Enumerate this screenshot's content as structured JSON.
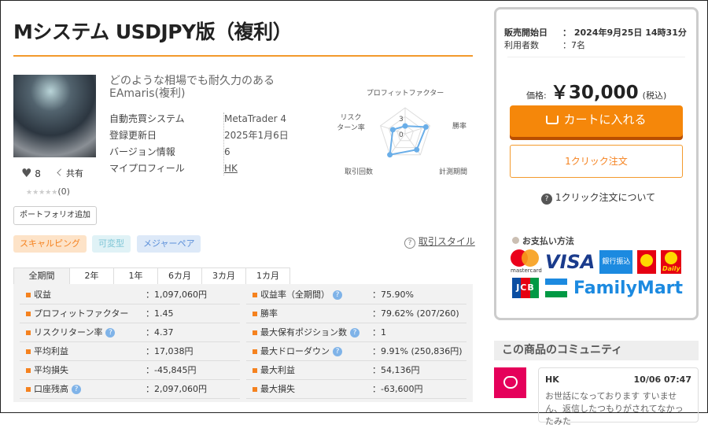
{
  "title": "Mシステム USDJPY版（複利）",
  "product": {
    "subtitle_line1": "どのような相場でも耐久力のある",
    "subtitle_line2": "EAmaris(複利)",
    "info": [
      {
        "k": "自動売買システム",
        "v": "MetaTrader 4"
      },
      {
        "k": "登録更新日",
        "v": "2025年1月6日"
      },
      {
        "k": "バージョン情報",
        "v": "6"
      },
      {
        "k": "マイプロフィール",
        "v": "HK"
      }
    ],
    "likes": "8",
    "share": "共有",
    "stars": "★★★★★",
    "reviews": "(0)",
    "portfolio_button": "ポートフォリオ追加",
    "tags": [
      {
        "label": "スキャルピング",
        "color": "#f5821f"
      },
      {
        "label": "可変型",
        "color": "#7fc6d6"
      },
      {
        "label": "メジャーペア",
        "color": "#5b8fd9"
      }
    ],
    "trade_style": "取引スタイル"
  },
  "radar": {
    "axes": [
      "プロフィットファクター",
      "勝率",
      "計測期間",
      "取引回数",
      "リスク\nターン率"
    ],
    "tick_labels": [
      "0",
      "3"
    ],
    "values": [
      1.5,
      4.2,
      3.8,
      5,
      2.5
    ],
    "max": 5,
    "color": "#6aaee8"
  },
  "tabs": [
    "全期間",
    "2年",
    "1年",
    "6カ月",
    "3カ月",
    "1カ月"
  ],
  "stats_left": [
    {
      "k": "収益",
      "v": "：1,097,060円",
      "help": false
    },
    {
      "k": "プロフィットファクター",
      "v": "：1.45",
      "help": false
    },
    {
      "k": "リスクリターン率",
      "v": "：4.37",
      "help": true
    },
    {
      "k": "平均利益",
      "v": "：17,038円",
      "help": false
    },
    {
      "k": "平均損失",
      "v": "：-45,845円",
      "help": false
    },
    {
      "k": "口座残高",
      "v": "：2,097,060円",
      "help": true
    }
  ],
  "stats_right": [
    {
      "k": "収益率（全期間）",
      "v": "：75.90%",
      "help": true
    },
    {
      "k": "勝率",
      "v": "：79.62% (207/260)",
      "help": false
    },
    {
      "k": "最大保有ポジション数",
      "v": "：1",
      "help": true
    },
    {
      "k": "最大ドローダウン",
      "v": "：9.91% (250,836円)",
      "help": true
    },
    {
      "k": "最大利益",
      "v": "：54,136円",
      "help": false
    },
    {
      "k": "最大損失",
      "v": "：-63,600円",
      "help": false
    }
  ],
  "sidebar": {
    "sale_start_label": "販売開始日",
    "sale_start_value": "：  2024年9月25日 14時31分",
    "users_label": "利用者数",
    "users_value": "：7名",
    "price_label": "価格:",
    "price": "￥30,000",
    "tax": "(税込)",
    "cart_button": "カートに入れる",
    "oneclick_button": "1クリック注文",
    "oneclick_about": "1クリック注文について",
    "payment_title": "お支払い方法",
    "payments": [
      "mastercard",
      "VISA",
      "銀行振込",
      "Dポイント",
      "Daily",
      "JCB",
      "FamilyMart"
    ],
    "community_title": "この商品のコミュニティ",
    "post_user": "HK",
    "post_time": "10/06 07:47",
    "post_text": "お世話になっております すいません、返信したつもりがされてなかったみた"
  }
}
